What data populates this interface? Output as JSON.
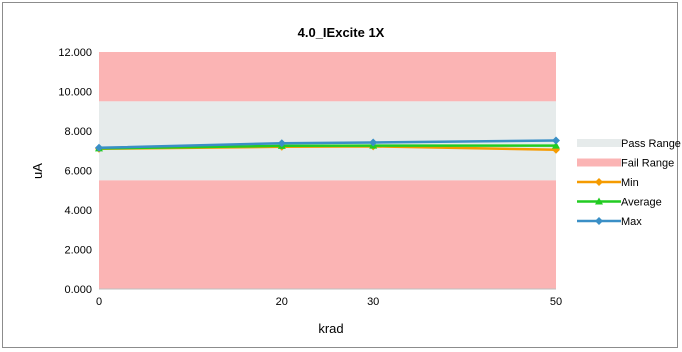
{
  "chart_data": {
    "type": "line",
    "title": "4.0_IExcite 1X",
    "xlabel": "krad",
    "ylabel": "uA",
    "categories": [
      "0",
      "20",
      "30",
      "50"
    ],
    "ylim": [
      0,
      12
    ],
    "yticks": [
      "0.000",
      "2.000",
      "4.000",
      "6.000",
      "8.000",
      "10.000",
      "12.000"
    ],
    "pass_range": [
      5.5,
      9.5
    ],
    "fail_range_below": [
      0,
      5.5
    ],
    "fail_range_above": [
      9.5,
      12
    ],
    "series": [
      {
        "name": "Min",
        "color": "#f59b00",
        "marker": "diamond",
        "values": [
          7.1,
          7.2,
          7.22,
          7.05
        ]
      },
      {
        "name": "Average",
        "color": "#22cc22",
        "marker": "triangle",
        "values": [
          7.12,
          7.25,
          7.26,
          7.26
        ]
      },
      {
        "name": "Max",
        "color": "#3a8fc6",
        "marker": "diamond",
        "values": [
          7.15,
          7.38,
          7.42,
          7.52
        ]
      }
    ],
    "legend": [
      {
        "name": "Pass Range",
        "color": "#e6ebeb",
        "kind": "band"
      },
      {
        "name": "Fail Range",
        "color": "#fbb4b4",
        "kind": "band"
      },
      {
        "name": "Min",
        "color": "#f59b00",
        "kind": "line"
      },
      {
        "name": "Average",
        "color": "#22cc22",
        "kind": "line"
      },
      {
        "name": "Max",
        "color": "#3a8fc6",
        "kind": "line"
      }
    ],
    "legend_position": "right",
    "grid": false
  }
}
